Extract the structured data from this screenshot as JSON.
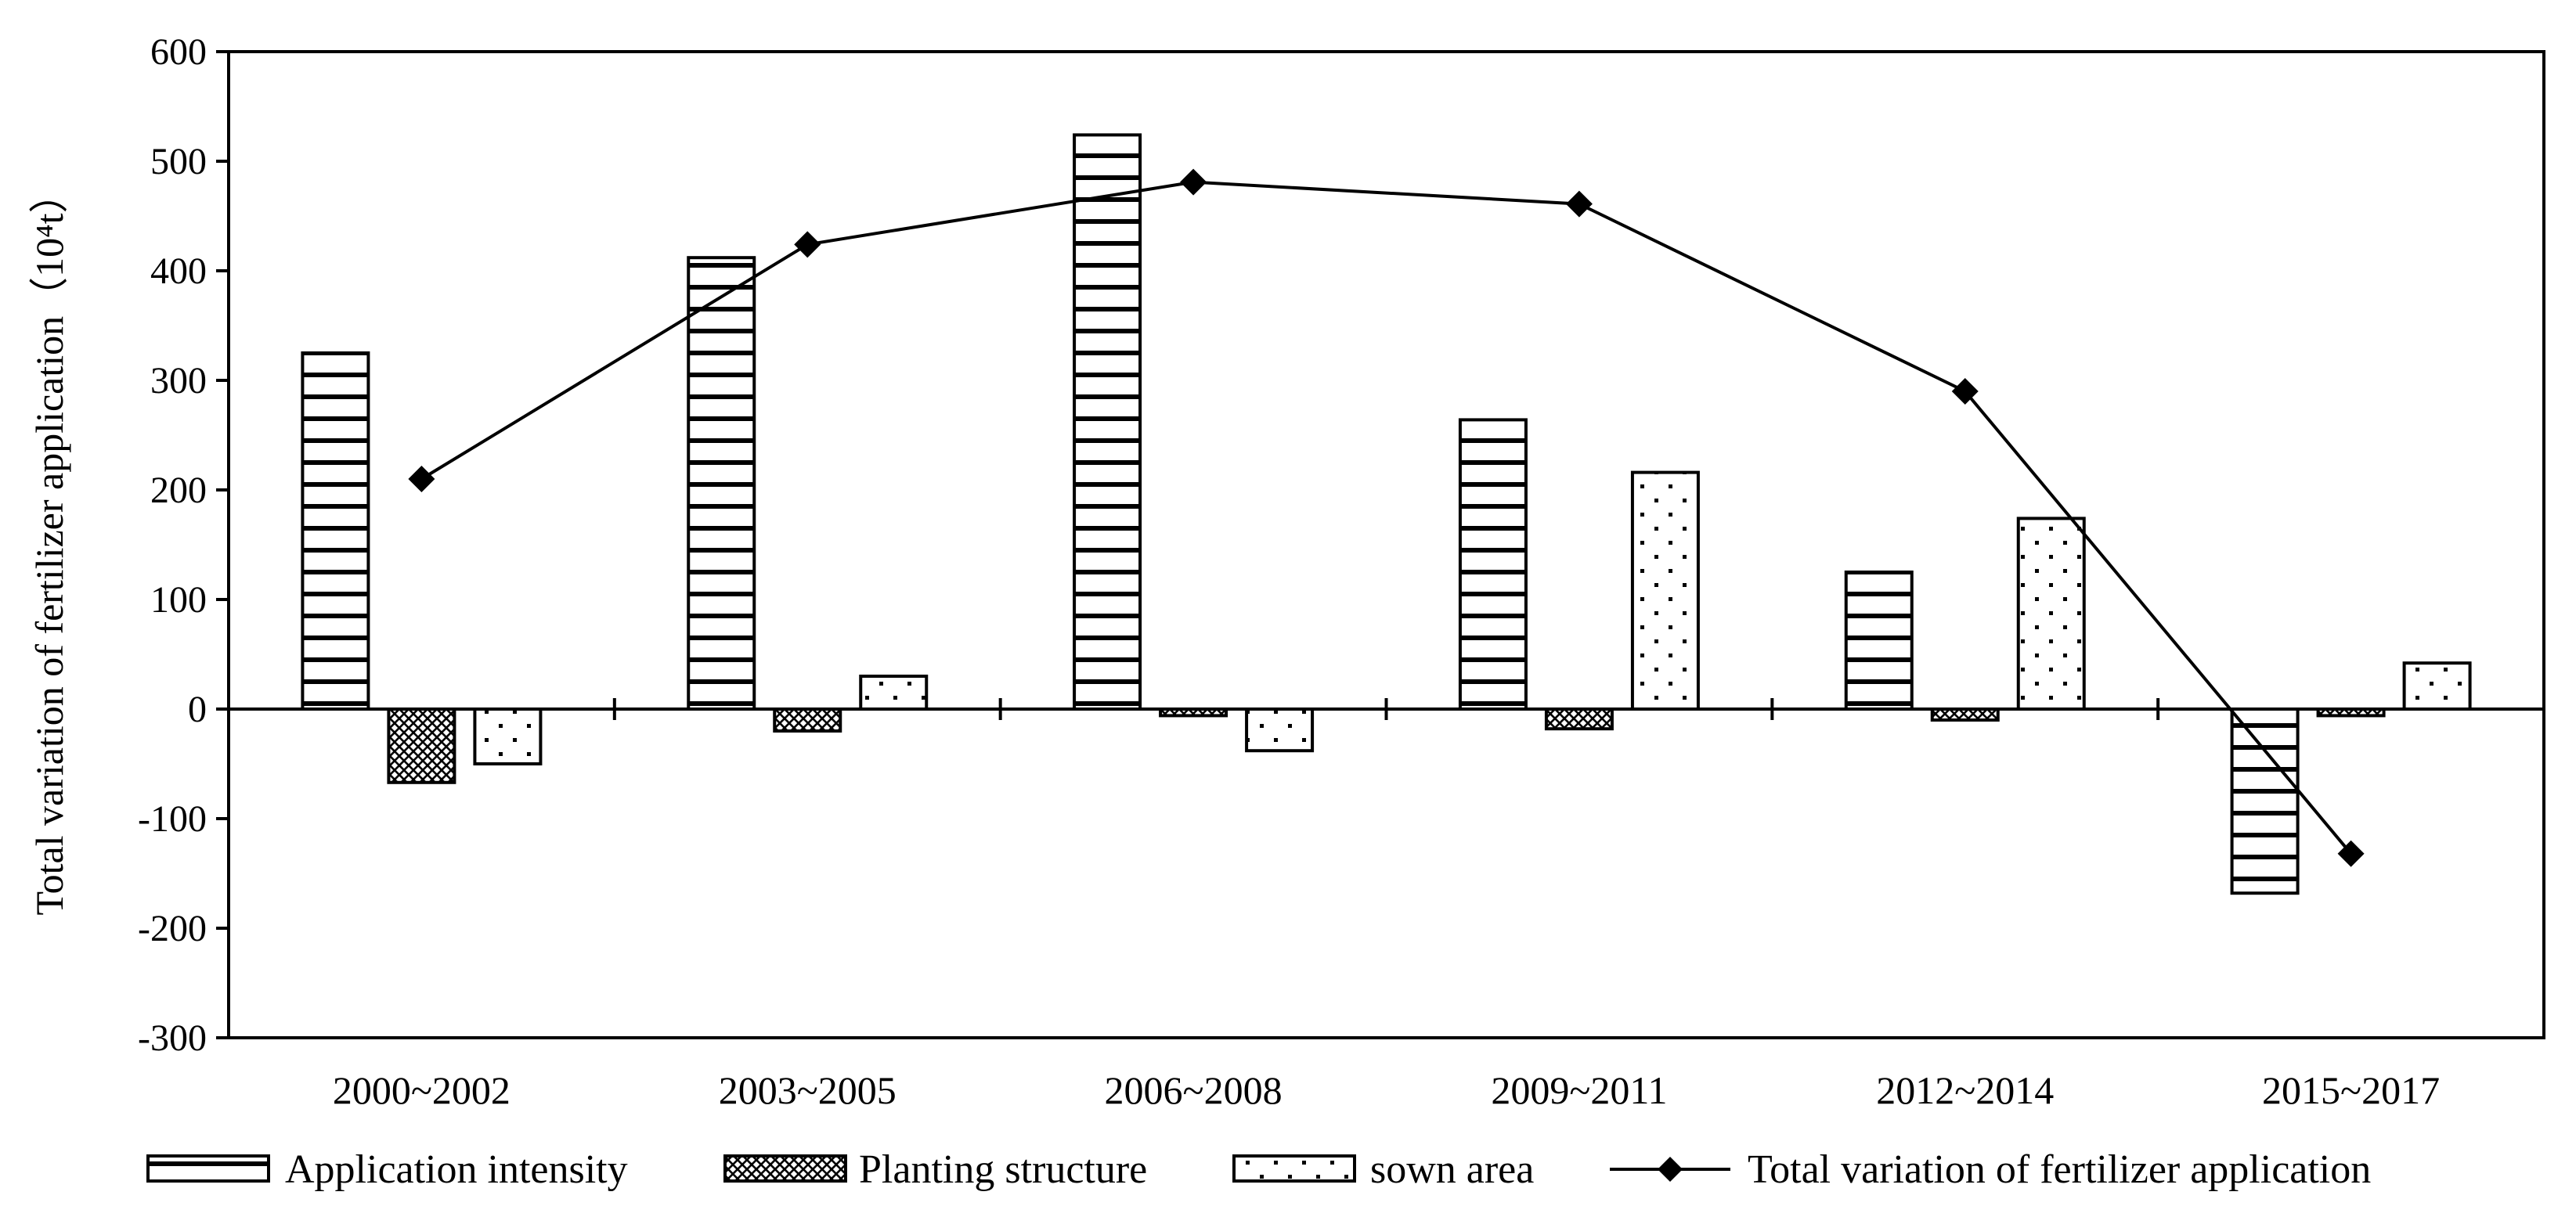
{
  "chart_data": {
    "type": "bar",
    "title": "",
    "xlabel": "",
    "ylabel": "Total variation of fertilizer application（10⁴t）",
    "ylim": [
      -300,
      600
    ],
    "yticks": [
      600,
      500,
      400,
      300,
      200,
      100,
      0,
      -100,
      -200,
      -300
    ],
    "ytick_labels": [
      "600",
      "500",
      "400",
      "300",
      "200",
      "100",
      "0",
      "-100",
      "-200",
      "-300"
    ],
    "categories": [
      "2000~2002",
      "2003~2005",
      "2006~2008",
      "2009~2011",
      "2012~2014",
      "2015~2017"
    ],
    "series": [
      {
        "name": "Application intensity",
        "kind": "bar",
        "pattern": "horizontal-stripes",
        "values": [
          325,
          412,
          524,
          264,
          125,
          -168
        ]
      },
      {
        "name": "Planting structure",
        "kind": "bar",
        "pattern": "crosshatch",
        "values": [
          -67,
          -20,
          -6,
          -18,
          -10,
          -6
        ]
      },
      {
        "name": "sown area",
        "kind": "bar",
        "pattern": "dots",
        "values": [
          -50,
          30,
          -38,
          216,
          174,
          42
        ]
      },
      {
        "name": "Total variation of fertilizer application",
        "kind": "line",
        "marker": "diamond",
        "values": [
          210,
          424,
          481,
          461,
          290,
          -132
        ]
      }
    ],
    "grid": false,
    "legend_position": "bottom"
  }
}
